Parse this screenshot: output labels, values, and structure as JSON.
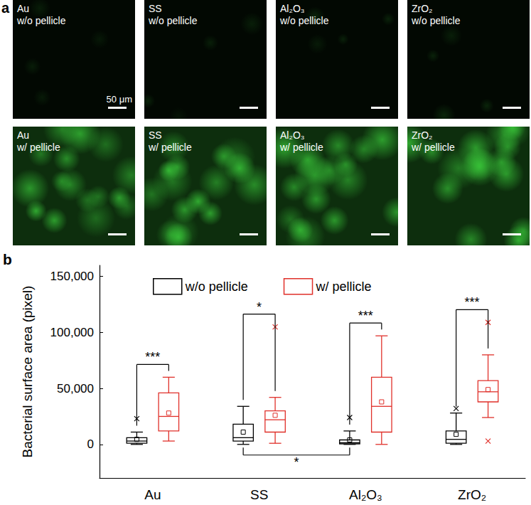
{
  "panel_a": {
    "label": "a",
    "scale_bar": "50 μm",
    "tiles": [
      {
        "lines": [
          "Au",
          "w/o pellicle"
        ],
        "with_pellicle": false
      },
      {
        "lines": [
          "SS",
          "w/o pellicle"
        ],
        "with_pellicle": false
      },
      {
        "lines": [
          "Al₂O₃",
          "w/o pellicle"
        ],
        "with_pellicle": false
      },
      {
        "lines": [
          "ZrO₂",
          "w/o pellicle"
        ],
        "with_pellicle": false
      },
      {
        "lines": [
          "Au",
          "w/ pellicle"
        ],
        "with_pellicle": true
      },
      {
        "lines": [
          "SS",
          "w/ pellicle"
        ],
        "with_pellicle": true
      },
      {
        "lines": [
          "Al₂O₃",
          "w/ pellicle"
        ],
        "with_pellicle": true
      },
      {
        "lines": [
          "ZrO₂",
          "w/ pellicle"
        ],
        "with_pellicle": true
      }
    ]
  },
  "chart_data": {
    "type": "boxplot",
    "panel_label": "b",
    "categories": [
      "Au",
      "SS",
      "Al₂O₃",
      "ZrO₂"
    ],
    "y_label": "Bacterial surface area (pixel)",
    "ylim": [
      -30000,
      160000
    ],
    "yticks": [
      0,
      {
        "value": 50000,
        "label": "50,000"
      },
      {
        "value": 100000,
        "label": "100,000"
      },
      {
        "value": 150000,
        "label": "150,000"
      }
    ],
    "legend": "top",
    "grid": false,
    "series": [
      {
        "name": "w/o pellicle",
        "color": "#000000",
        "boxes": [
          {
            "min": 0,
            "q1": 1000,
            "median": 3000,
            "q3": 6000,
            "max": 11000,
            "mean": 4500,
            "outliers": [
              23000
            ]
          },
          {
            "min": 0,
            "q1": 3000,
            "median": 6000,
            "q3": 18000,
            "max": 34000,
            "mean": 11000,
            "outliers": []
          },
          {
            "min": 0,
            "q1": 500,
            "median": 1500,
            "q3": 4000,
            "max": 12000,
            "mean": 4000,
            "outliers": [
              24000
            ]
          },
          {
            "min": 0,
            "q1": 1000,
            "median": 4500,
            "q3": 12000,
            "max": 28000,
            "mean": 9000,
            "outliers": [
              32000
            ]
          }
        ]
      },
      {
        "name": "w/ pellicle",
        "color": "#e0302a",
        "boxes": [
          {
            "min": 3000,
            "q1": 12000,
            "median": 25000,
            "q3": 46000,
            "max": 60000,
            "mean": 28000,
            "outliers": []
          },
          {
            "min": 1000,
            "q1": 11000,
            "median": 22000,
            "q3": 30000,
            "max": 42000,
            "mean": 26000,
            "outliers": [
              105000
            ]
          },
          {
            "min": 0,
            "q1": 11000,
            "median": 34000,
            "q3": 60000,
            "max": 97000,
            "mean": 38000,
            "outliers": []
          },
          {
            "min": 24000,
            "q1": 38000,
            "median": 47000,
            "q3": 57000,
            "max": 80000,
            "mean": 49000,
            "outliers": [
              109000,
              3000
            ]
          }
        ]
      }
    ],
    "significance": [
      {
        "from": {
          "category": "Au",
          "series": "w/o pellicle"
        },
        "to": {
          "category": "Au",
          "series": "w/ pellicle"
        },
        "label": "***",
        "side": "above"
      },
      {
        "from": {
          "category": "SS",
          "series": "w/o pellicle"
        },
        "to": {
          "category": "SS",
          "series": "w/ pellicle"
        },
        "label": "*",
        "side": "above"
      },
      {
        "from": {
          "category": "Al₂O₃",
          "series": "w/o pellicle"
        },
        "to": {
          "category": "Al₂O₃",
          "series": "w/ pellicle"
        },
        "label": "***",
        "side": "above"
      },
      {
        "from": {
          "category": "ZrO₂",
          "series": "w/o pellicle"
        },
        "to": {
          "category": "ZrO₂",
          "series": "w/ pellicle"
        },
        "label": "***",
        "side": "above"
      },
      {
        "from": {
          "category": "SS",
          "series": "w/o pellicle"
        },
        "to": {
          "category": "Al₂O₃",
          "series": "w/o pellicle"
        },
        "label": "*",
        "side": "below"
      }
    ]
  }
}
